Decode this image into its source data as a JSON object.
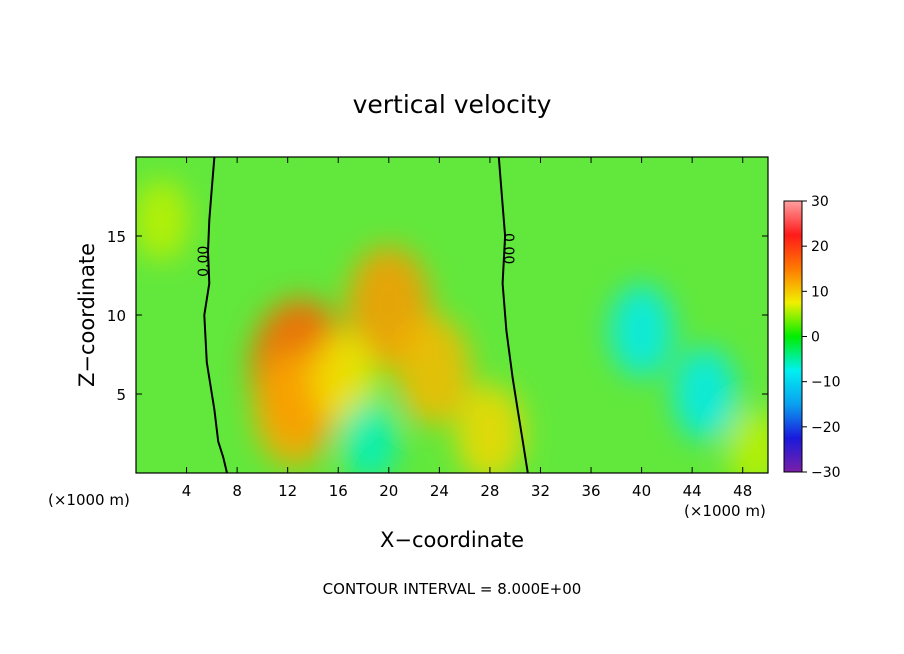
{
  "chart_data": {
    "type": "heatmap",
    "title": "vertical velocity",
    "xlabel": "X−coordinate",
    "ylabel": "Z−coordinate",
    "x_unit_left": "(×1000 m)",
    "x_unit_right": "(×1000 m)",
    "footer": "CONTOUR INTERVAL = 8.000E+00",
    "xlim": [
      0,
      50
    ],
    "ylim": [
      0,
      20
    ],
    "x_ticks": [
      4,
      8,
      12,
      16,
      20,
      24,
      28,
      32,
      36,
      40,
      44,
      48
    ],
    "y_ticks": [
      5,
      10,
      15
    ],
    "colorbar": {
      "min": -30,
      "max": 30,
      "ticks": [
        30,
        20,
        10,
        0,
        -10,
        -20,
        -30
      ],
      "tick_labels": [
        "30",
        "20",
        "10",
        "0",
        "−10",
        "−20",
        "−30"
      ],
      "colors": [
        "#7a1fa8",
        "#1a1adc",
        "#0aa0f0",
        "#00f0f0",
        "#00ee00",
        "#f0f000",
        "#ff7a00",
        "#ff1a1a",
        "#ffa0a0"
      ]
    },
    "contour_labels": [
      {
        "text": "0.00",
        "x": 5.7,
        "z": 13.4
      },
      {
        "text": "0.00",
        "x": 29.1,
        "z": 14.2
      }
    ],
    "zero_contours": [
      {
        "name": "left",
        "x": [
          6.2,
          6.0,
          5.8,
          5.7,
          5.8,
          5.4,
          5.6,
          6.2,
          6.5,
          6.9,
          7.2
        ],
        "z": [
          20,
          18,
          16,
          14,
          12,
          10,
          7,
          4,
          2,
          1,
          0
        ]
      },
      {
        "name": "center",
        "x": [
          28.7,
          28.9,
          29.2,
          29.0,
          29.3,
          29.8,
          30.2,
          30.6,
          30.8,
          31.0
        ],
        "z": [
          20,
          18,
          15,
          12,
          9,
          6,
          4,
          2,
          1,
          0
        ]
      }
    ],
    "field_features": [
      {
        "x": 13,
        "z": 6.5,
        "w": 17
      },
      {
        "x": 20,
        "z": 10.5,
        "w": 13
      },
      {
        "x": 23.5,
        "z": 6.5,
        "w": 11
      },
      {
        "x": 12.5,
        "z": 4,
        "w": 12
      },
      {
        "x": 16.5,
        "z": 6,
        "w": 8
      },
      {
        "x": 18.5,
        "z": 2,
        "w": -6
      },
      {
        "x": 28,
        "z": 2.5,
        "w": 9
      },
      {
        "x": 40,
        "z": 9,
        "w": -8
      },
      {
        "x": 45,
        "z": 5,
        "w": -8
      },
      {
        "x": 2,
        "z": 16,
        "w": 6
      },
      {
        "x": 49,
        "z": 1.5,
        "w": 6
      }
    ]
  }
}
